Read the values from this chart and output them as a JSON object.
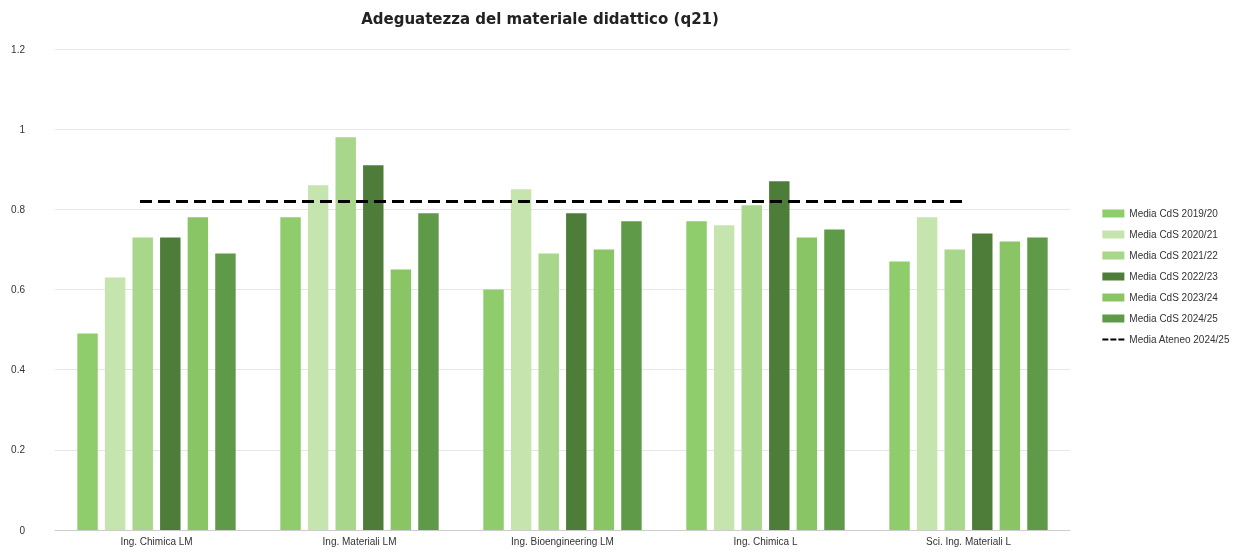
{
  "chart_data": {
    "type": "bar",
    "title": "Adeguatezza del materiale didattico (q21)",
    "categories": [
      "Ing. Chimica LM",
      "Ing. Materiali LM",
      "Ing. Bioengineering LM",
      "Ing. Chimica L",
      "Sci. Ing. Materiali L"
    ],
    "series": [
      {
        "name": "Media CdS 2019/20",
        "color": "#8fcc6c",
        "values": [
          0.49,
          0.78,
          0.6,
          0.77,
          0.67
        ]
      },
      {
        "name": "Media CdS 2020/21",
        "color": "#c6e4ad",
        "values": [
          0.63,
          0.86,
          0.85,
          0.76,
          0.78
        ]
      },
      {
        "name": "Media CdS 2021/22",
        "color": "#a8d68a",
        "values": [
          0.73,
          0.98,
          0.69,
          0.81,
          0.7
        ]
      },
      {
        "name": "Media CdS 2022/23",
        "color": "#4e7d3a",
        "values": [
          0.73,
          0.91,
          0.79,
          0.87,
          0.74
        ]
      },
      {
        "name": "Media CdS 2023/24",
        "color": "#8ac565",
        "values": [
          0.78,
          0.65,
          0.7,
          0.73,
          0.72
        ]
      },
      {
        "name": "Media CdS 2024/25",
        "color": "#5f9a48",
        "values": [
          0.69,
          0.79,
          0.77,
          0.75,
          0.73
        ]
      }
    ],
    "ref_lines": [
      {
        "axis": "y",
        "value": 0.82,
        "label": "Media Ateneo 2024/25",
        "color": "#000000",
        "line_style": "dashed"
      }
    ],
    "ylim": [
      0,
      1.2
    ],
    "yticks": [
      0,
      0.2,
      0.4,
      0.6,
      0.8,
      1,
      1.2
    ],
    "grid": "y",
    "legend": "right"
  }
}
